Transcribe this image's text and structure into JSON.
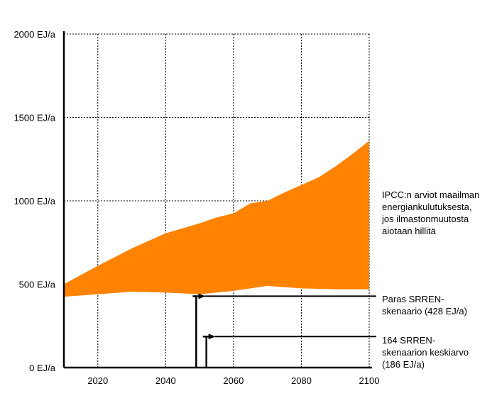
{
  "chart_data": {
    "type": "area",
    "title": "",
    "xlabel": "",
    "ylabel": "",
    "xlim": [
      2010,
      2100
    ],
    "ylim": [
      0,
      2000
    ],
    "grid": true,
    "x_ticks": [
      "2020",
      "2040",
      "2060",
      "2080",
      "2100"
    ],
    "y_ticks": [
      "0 EJ/a",
      "500 EJ/a",
      "1000 EJ/a",
      "1500 EJ/a",
      "2000 EJ/a"
    ],
    "band": {
      "color": "#ff8200",
      "upper": [
        [
          2010,
          500
        ],
        [
          2020,
          610
        ],
        [
          2030,
          715
        ],
        [
          2040,
          805
        ],
        [
          2050,
          865
        ],
        [
          2055,
          900
        ],
        [
          2060,
          925
        ],
        [
          2065,
          985
        ],
        [
          2070,
          1000
        ],
        [
          2075,
          1050
        ],
        [
          2080,
          1095
        ],
        [
          2085,
          1140
        ],
        [
          2090,
          1205
        ],
        [
          2095,
          1280
        ],
        [
          2100,
          1360
        ]
      ],
      "lower": [
        [
          2010,
          425
        ],
        [
          2020,
          440
        ],
        [
          2030,
          455
        ],
        [
          2040,
          450
        ],
        [
          2050,
          440
        ],
        [
          2060,
          460
        ],
        [
          2070,
          490
        ],
        [
          2080,
          475
        ],
        [
          2090,
          470
        ],
        [
          2100,
          470
        ]
      ]
    },
    "markers": [
      {
        "x": 2049,
        "value": 428
      },
      {
        "x": 2052,
        "value": 186
      }
    ],
    "annotations": {
      "band_label": [
        "IPCC:n arviot maailman",
        "energiankulutuksesta,",
        "jos ilmastonmuutosta",
        "aiotaan hillitä"
      ],
      "best_label": [
        "Paras SRREN-",
        "skenaario (428 EJ/a)"
      ],
      "mean_label": [
        "164 SRREN-",
        "skenaarion keskiarvo",
        "(186 EJ/a)"
      ]
    }
  }
}
